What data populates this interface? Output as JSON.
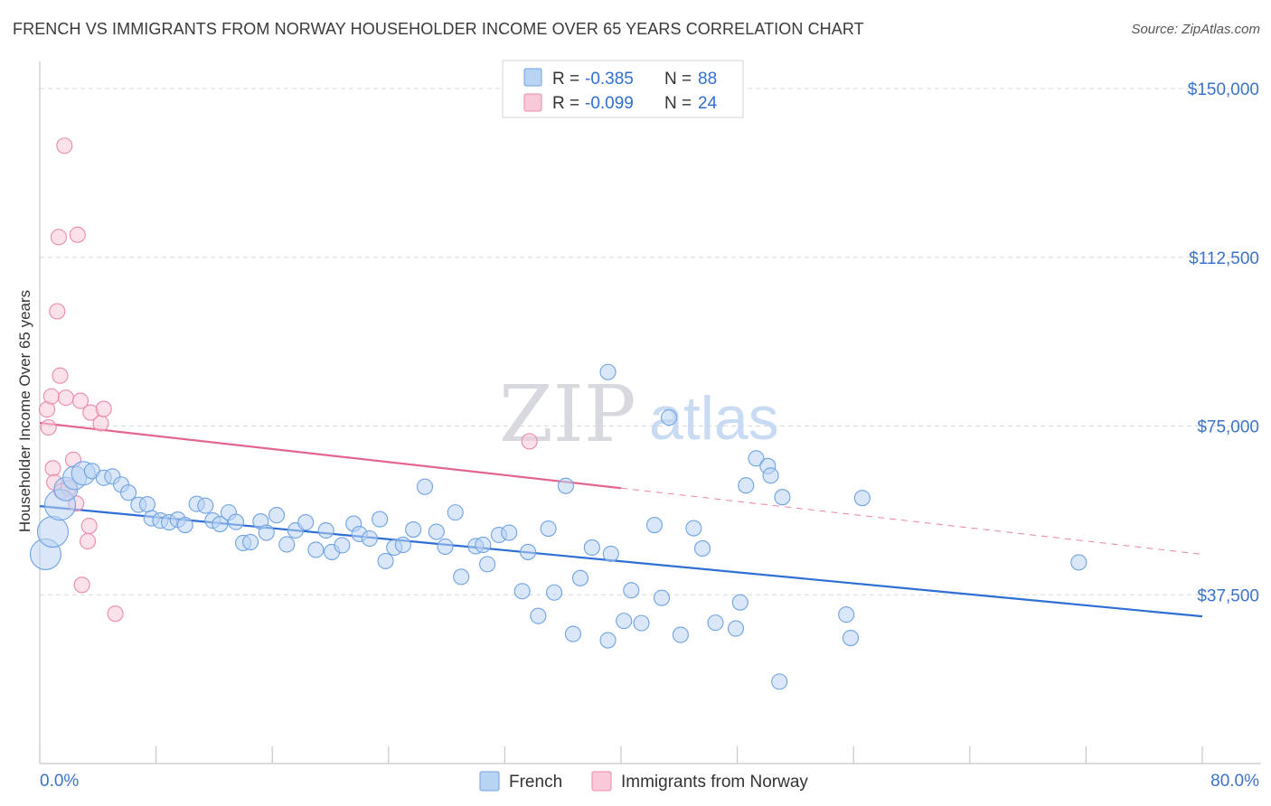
{
  "title": "FRENCH VS IMMIGRANTS FROM NORWAY HOUSEHOLDER INCOME OVER 65 YEARS CORRELATION CHART",
  "source": "Source: ZipAtlas.com",
  "watermark": {
    "zip": "ZIP",
    "atlas": "atlas"
  },
  "colors": {
    "french": "#6fa3e3",
    "french_fill": "#b9d3f3",
    "norway": "#ea8aaa",
    "norway_fill": "#f8c9d8",
    "french_line": "#2e6fd4",
    "norway_line": "#e2668f",
    "axis_text": "#3b73c8"
  },
  "legend_box": [
    {
      "r_label": "R =",
      "r_value": "-0.385",
      "n_label": "N =",
      "n_value": "88"
    },
    {
      "r_label": "R =",
      "r_value": "-0.099",
      "n_label": "N =",
      "n_value": "24"
    }
  ],
  "bottom_legend": [
    "French",
    "Immigrants from Norway"
  ],
  "chart_data": {
    "type": "scatter",
    "title": "FRENCH VS IMMIGRANTS FROM NORWAY HOUSEHOLDER INCOME OVER 65 YEARS CORRELATION CHART",
    "xlabel": "",
    "ylabel": "Householder Income Over 65 years",
    "xlim": [
      0,
      80
    ],
    "ylim": [
      0,
      155000
    ],
    "x_tick_labels": [
      "0.0%",
      "80.0%"
    ],
    "y_ticks": [
      37500,
      75000,
      112500,
      150000
    ],
    "y_tick_labels": [
      "$37,500",
      "$75,000",
      "$112,500",
      "$150,000"
    ],
    "grid": true,
    "legend_placement": "bottom-center",
    "series": [
      {
        "name": "French",
        "trend": {
          "x": [
            0,
            80
          ],
          "y": [
            57200,
            32700
          ]
        },
        "points": [
          {
            "x": 0.4,
            "y": 46500,
            "s": 3
          },
          {
            "x": 0.9,
            "y": 51500,
            "s": 3
          },
          {
            "x": 1.4,
            "y": 57500,
            "s": 3
          },
          {
            "x": 1.8,
            "y": 61000,
            "s": 2
          },
          {
            "x": 2.4,
            "y": 63500,
            "s": 2
          },
          {
            "x": 3.0,
            "y": 64500,
            "s": 2
          },
          {
            "x": 3.6,
            "y": 65000,
            "s": 1
          },
          {
            "x": 4.4,
            "y": 63500,
            "s": 1
          },
          {
            "x": 5.0,
            "y": 63800,
            "s": 1
          },
          {
            "x": 5.6,
            "y": 62000,
            "s": 1
          },
          {
            "x": 6.1,
            "y": 60200,
            "s": 1
          },
          {
            "x": 6.8,
            "y": 57500,
            "s": 1
          },
          {
            "x": 7.4,
            "y": 57600,
            "s": 1
          },
          {
            "x": 7.7,
            "y": 54500,
            "s": 1
          },
          {
            "x": 8.3,
            "y": 54000,
            "s": 1
          },
          {
            "x": 8.9,
            "y": 53600,
            "s": 1
          },
          {
            "x": 9.5,
            "y": 54200,
            "s": 1
          },
          {
            "x": 10.0,
            "y": 53000,
            "s": 1
          },
          {
            "x": 10.8,
            "y": 57700,
            "s": 1
          },
          {
            "x": 11.4,
            "y": 57300,
            "s": 1
          },
          {
            "x": 11.9,
            "y": 54000,
            "s": 1
          },
          {
            "x": 12.4,
            "y": 53200,
            "s": 1
          },
          {
            "x": 13.0,
            "y": 55800,
            "s": 1
          },
          {
            "x": 13.5,
            "y": 53700,
            "s": 1
          },
          {
            "x": 14.0,
            "y": 49000,
            "s": 1
          },
          {
            "x": 14.5,
            "y": 49200,
            "s": 1
          },
          {
            "x": 15.2,
            "y": 53800,
            "s": 1
          },
          {
            "x": 15.6,
            "y": 51300,
            "s": 1
          },
          {
            "x": 16.3,
            "y": 55200,
            "s": 1
          },
          {
            "x": 17.0,
            "y": 48700,
            "s": 1
          },
          {
            "x": 17.6,
            "y": 51800,
            "s": 1
          },
          {
            "x": 18.3,
            "y": 53600,
            "s": 1
          },
          {
            "x": 19.0,
            "y": 47500,
            "s": 1
          },
          {
            "x": 19.7,
            "y": 51800,
            "s": 1
          },
          {
            "x": 20.1,
            "y": 47000,
            "s": 1
          },
          {
            "x": 20.8,
            "y": 48500,
            "s": 1
          },
          {
            "x": 21.6,
            "y": 53300,
            "s": 1
          },
          {
            "x": 22.0,
            "y": 51000,
            "s": 1
          },
          {
            "x": 22.7,
            "y": 50000,
            "s": 1
          },
          {
            "x": 23.4,
            "y": 54300,
            "s": 1
          },
          {
            "x": 23.8,
            "y": 45000,
            "s": 1
          },
          {
            "x": 24.4,
            "y": 48000,
            "s": 1
          },
          {
            "x": 25.0,
            "y": 48600,
            "s": 1
          },
          {
            "x": 25.7,
            "y": 52000,
            "s": 1
          },
          {
            "x": 26.5,
            "y": 61500,
            "s": 1
          },
          {
            "x": 27.3,
            "y": 51500,
            "s": 1
          },
          {
            "x": 27.9,
            "y": 48200,
            "s": 1
          },
          {
            "x": 28.6,
            "y": 55800,
            "s": 1
          },
          {
            "x": 29.0,
            "y": 41500,
            "s": 1
          },
          {
            "x": 30.0,
            "y": 48300,
            "s": 1
          },
          {
            "x": 30.5,
            "y": 48600,
            "s": 1
          },
          {
            "x": 30.8,
            "y": 44300,
            "s": 1
          },
          {
            "x": 31.6,
            "y": 50800,
            "s": 1
          },
          {
            "x": 32.3,
            "y": 51300,
            "s": 1
          },
          {
            "x": 33.6,
            "y": 47000,
            "s": 1
          },
          {
            "x": 33.2,
            "y": 38300,
            "s": 1
          },
          {
            "x": 34.3,
            "y": 32800,
            "s": 1
          },
          {
            "x": 35.0,
            "y": 52200,
            "s": 1
          },
          {
            "x": 35.4,
            "y": 38000,
            "s": 1
          },
          {
            "x": 36.2,
            "y": 61700,
            "s": 1
          },
          {
            "x": 36.7,
            "y": 28800,
            "s": 1
          },
          {
            "x": 37.2,
            "y": 41200,
            "s": 1
          },
          {
            "x": 38.0,
            "y": 48000,
            "s": 1
          },
          {
            "x": 39.1,
            "y": 27400,
            "s": 1
          },
          {
            "x": 39.3,
            "y": 46600,
            "s": 1
          },
          {
            "x": 40.2,
            "y": 31700,
            "s": 1
          },
          {
            "x": 40.7,
            "y": 38500,
            "s": 1
          },
          {
            "x": 41.4,
            "y": 31200,
            "s": 1
          },
          {
            "x": 42.3,
            "y": 53000,
            "s": 1
          },
          {
            "x": 42.8,
            "y": 36800,
            "s": 1
          },
          {
            "x": 44.1,
            "y": 28600,
            "s": 1
          },
          {
            "x": 45.0,
            "y": 52300,
            "s": 1
          },
          {
            "x": 45.6,
            "y": 47800,
            "s": 1
          },
          {
            "x": 46.5,
            "y": 31300,
            "s": 1
          },
          {
            "x": 47.9,
            "y": 30000,
            "s": 1
          },
          {
            "x": 48.2,
            "y": 35800,
            "s": 1
          },
          {
            "x": 48.6,
            "y": 61800,
            "s": 1
          },
          {
            "x": 49.3,
            "y": 67800,
            "s": 1
          },
          {
            "x": 50.1,
            "y": 66100,
            "s": 1
          },
          {
            "x": 50.3,
            "y": 64000,
            "s": 1
          },
          {
            "x": 50.9,
            "y": 18200,
            "s": 1
          },
          {
            "x": 51.1,
            "y": 59200,
            "s": 1
          },
          {
            "x": 55.5,
            "y": 33100,
            "s": 1
          },
          {
            "x": 55.8,
            "y": 27900,
            "s": 1
          },
          {
            "x": 56.6,
            "y": 59000,
            "s": 1
          },
          {
            "x": 71.5,
            "y": 44700,
            "s": 1
          },
          {
            "x": 39.1,
            "y": 87000,
            "s": 1
          },
          {
            "x": 43.3,
            "y": 76900,
            "s": 1
          }
        ]
      },
      {
        "name": "Immigrants from Norway",
        "trend": {
          "x": [
            0,
            40
          ],
          "y": [
            75700,
            61200
          ]
        },
        "trend_dashed": {
          "x": [
            40,
            80
          ],
          "y": [
            61200,
            46500
          ]
        },
        "points": [
          {
            "x": 0.5,
            "y": 78700
          },
          {
            "x": 0.6,
            "y": 74700
          },
          {
            "x": 0.8,
            "y": 81600
          },
          {
            "x": 0.9,
            "y": 65600
          },
          {
            "x": 1.0,
            "y": 62500
          },
          {
            "x": 1.2,
            "y": 100500
          },
          {
            "x": 1.3,
            "y": 117000
          },
          {
            "x": 1.4,
            "y": 86200
          },
          {
            "x": 1.5,
            "y": 60500
          },
          {
            "x": 1.7,
            "y": 137300
          },
          {
            "x": 1.8,
            "y": 81300
          },
          {
            "x": 2.0,
            "y": 61200
          },
          {
            "x": 2.3,
            "y": 67500
          },
          {
            "x": 2.5,
            "y": 57800
          },
          {
            "x": 2.6,
            "y": 117500
          },
          {
            "x": 2.8,
            "y": 80600
          },
          {
            "x": 2.9,
            "y": 39700
          },
          {
            "x": 3.3,
            "y": 49400
          },
          {
            "x": 3.4,
            "y": 52800
          },
          {
            "x": 3.5,
            "y": 78000
          },
          {
            "x": 4.2,
            "y": 75600
          },
          {
            "x": 4.4,
            "y": 78800
          },
          {
            "x": 5.2,
            "y": 33300
          },
          {
            "x": 33.7,
            "y": 71600
          }
        ]
      }
    ]
  }
}
